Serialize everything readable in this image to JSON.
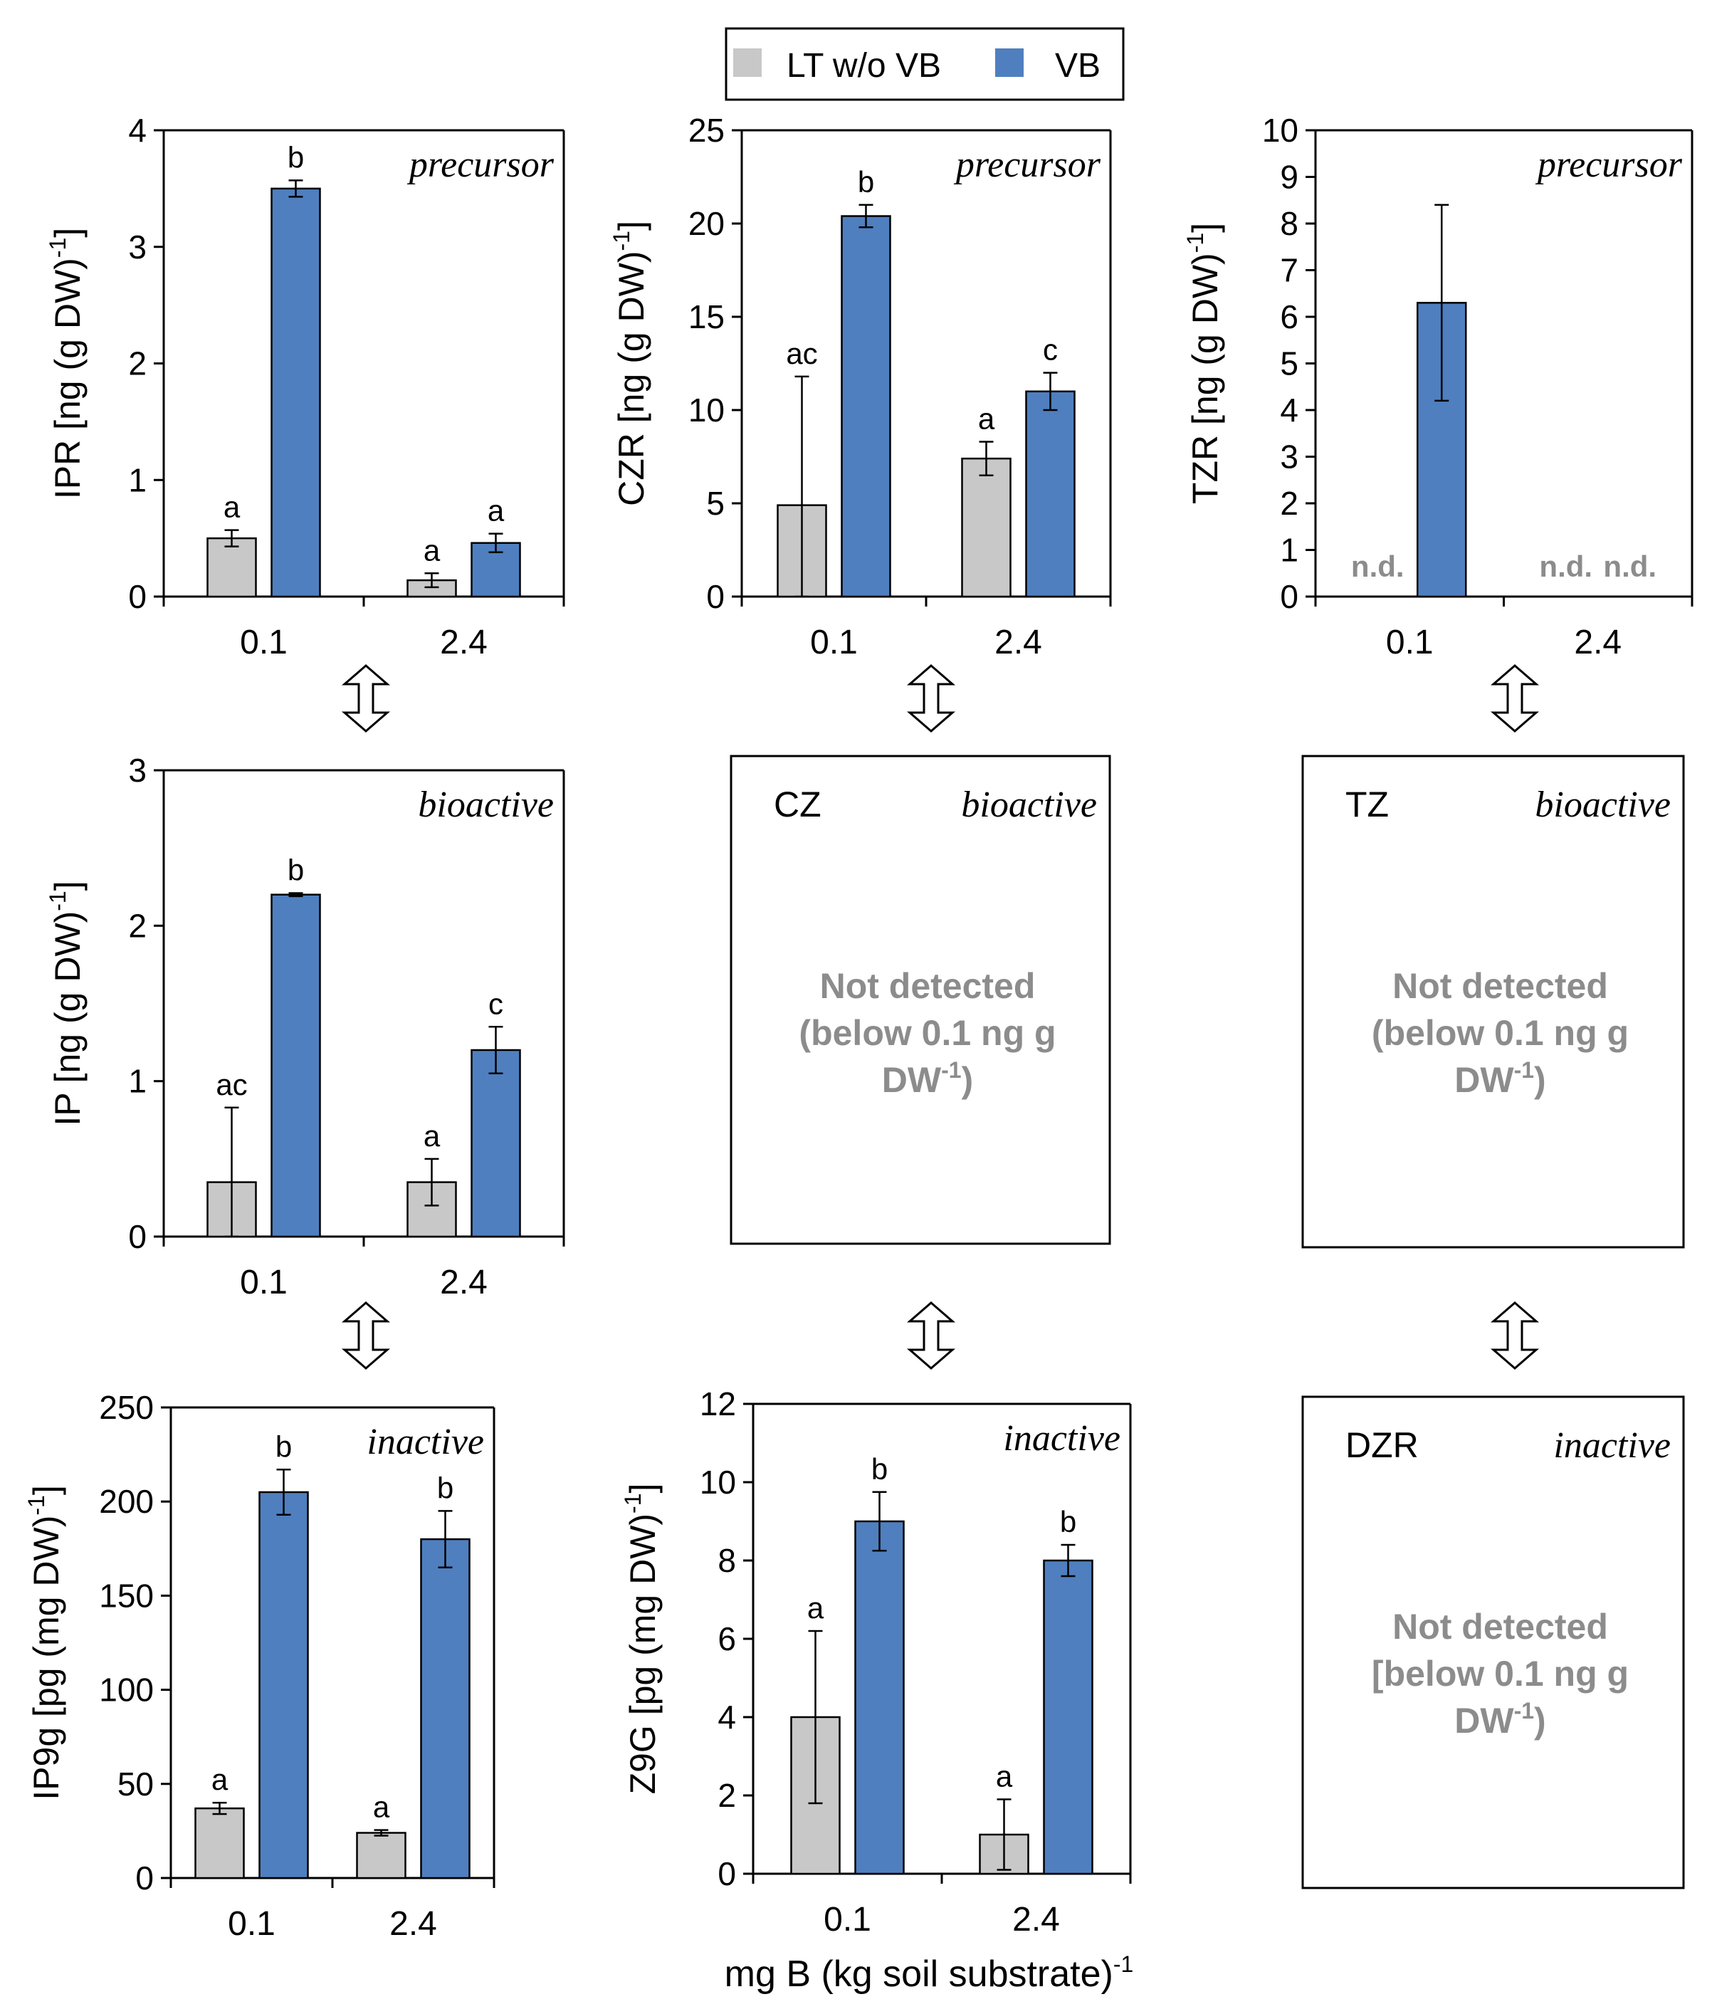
{
  "legend": {
    "items": [
      {
        "label": "LT w/o VB",
        "color": "#c8c8c8"
      },
      {
        "label": "VB",
        "color": "#4f7fbf"
      }
    ]
  },
  "x_axis_title": "mg B (kg soil substrate)",
  "x_axis_title_sup": "-1",
  "colors": {
    "gray": "#c8c8c8",
    "blue": "#4f7fbf",
    "nd_text": "#8c8c8c"
  },
  "chart_data": [
    {
      "id": "IPR",
      "type": "bar",
      "tag": "precursor",
      "ylabel": "IPR [ng (g DW)",
      "ylabel_sup": "-1",
      "ylabel_end": "]",
      "ylim": [
        0,
        4
      ],
      "yticks": [
        0,
        1,
        2,
        3,
        4
      ],
      "categories": [
        "0.1",
        "2.4"
      ],
      "series": [
        {
          "name": "LT w/o VB",
          "values": [
            0.5,
            0.14
          ],
          "errors": [
            0.07,
            0.06
          ],
          "letters": [
            "a",
            "a"
          ]
        },
        {
          "name": "VB",
          "values": [
            3.5,
            0.46
          ],
          "errors": [
            0.07,
            0.08
          ],
          "letters": [
            "b",
            "a"
          ]
        }
      ]
    },
    {
      "id": "CZR",
      "type": "bar",
      "tag": "precursor",
      "ylabel": "CZR [ng (g DW)",
      "ylabel_sup": "-1",
      "ylabel_end": "]",
      "ylim": [
        0,
        25
      ],
      "yticks": [
        0,
        5,
        10,
        15,
        20,
        25
      ],
      "categories": [
        "0.1",
        "2.4"
      ],
      "series": [
        {
          "name": "LT w/o VB",
          "values": [
            4.9,
            7.4
          ],
          "errors": [
            6.9,
            0.9
          ],
          "letters": [
            "ac",
            "a"
          ]
        },
        {
          "name": "VB",
          "values": [
            20.4,
            11.0
          ],
          "errors": [
            0.6,
            1.0
          ],
          "letters": [
            "b",
            "c"
          ]
        }
      ]
    },
    {
      "id": "TZR",
      "type": "bar",
      "tag": "precursor",
      "ylabel": "TZR [ng (g DW)",
      "ylabel_sup": "-1",
      "ylabel_end": "]",
      "ylim": [
        0,
        10
      ],
      "yticks": [
        0,
        1,
        2,
        3,
        4,
        5,
        6,
        7,
        8,
        9,
        10
      ],
      "categories": [
        "0.1",
        "2.4"
      ],
      "nd_label": "n.d.",
      "series": [
        {
          "name": "LT w/o VB",
          "values": [
            null,
            null
          ],
          "errors": [
            null,
            null
          ],
          "letters": [
            "",
            ""
          ]
        },
        {
          "name": "VB",
          "values": [
            6.3,
            null
          ],
          "errors": [
            2.1,
            null
          ],
          "letters": [
            "",
            ""
          ]
        }
      ]
    },
    {
      "id": "IP",
      "type": "bar",
      "tag": "bioactive",
      "ylabel": "IP [ng (g DW)",
      "ylabel_sup": "-1",
      "ylabel_end": "]",
      "ylim": [
        0,
        3
      ],
      "yticks": [
        0,
        1,
        2,
        3
      ],
      "categories": [
        "0.1",
        "2.4"
      ],
      "series": [
        {
          "name": "LT w/o VB",
          "values": [
            0.35,
            0.35
          ],
          "errors": [
            0.48,
            0.15
          ],
          "letters": [
            "ac",
            "a"
          ]
        },
        {
          "name": "VB",
          "values": [
            2.2,
            1.2
          ],
          "errors": [
            0.01,
            0.15
          ],
          "letters": [
            "b",
            "c"
          ]
        }
      ]
    },
    {
      "id": "IP9g",
      "type": "bar",
      "tag": "inactive",
      "ylabel": "IP9g [pg (mg DW)",
      "ylabel_sup": "-1",
      "ylabel_end": "]",
      "ylim": [
        0,
        250
      ],
      "yticks": [
        0,
        50,
        100,
        150,
        200,
        250
      ],
      "categories": [
        "0.1",
        "2.4"
      ],
      "series": [
        {
          "name": "LT w/o VB",
          "values": [
            37,
            24
          ],
          "errors": [
            3,
            1.5
          ],
          "letters": [
            "a",
            "a"
          ]
        },
        {
          "name": "VB",
          "values": [
            205,
            180
          ],
          "errors": [
            12,
            15
          ],
          "letters": [
            "b",
            "b"
          ]
        }
      ]
    },
    {
      "id": "Z9G",
      "type": "bar",
      "tag": "inactive",
      "ylabel": "Z9G [pg (mg DW)",
      "ylabel_sup": "-1",
      "ylabel_end": "]",
      "ylim": [
        0,
        12
      ],
      "yticks": [
        0,
        2,
        4,
        6,
        8,
        10,
        12
      ],
      "categories": [
        "0.1",
        "2.4"
      ],
      "series": [
        {
          "name": "LT w/o VB",
          "values": [
            4.0,
            1.0
          ],
          "errors": [
            2.2,
            0.9
          ],
          "letters": [
            "a",
            "a"
          ]
        },
        {
          "name": "VB",
          "values": [
            9.0,
            8.0
          ],
          "errors": [
            0.75,
            0.4
          ],
          "letters": [
            "b",
            "b"
          ]
        }
      ]
    }
  ],
  "nd_boxes": [
    {
      "id": "CZ",
      "name": "CZ",
      "tag": "bioactive",
      "lines": [
        "Not detected",
        "(below 0.1 ng g",
        "DW",
        ")"
      ],
      "sup": "-1"
    },
    {
      "id": "TZ",
      "name": "TZ",
      "tag": "bioactive",
      "lines": [
        "Not detected",
        "(below 0.1 ng g",
        "DW",
        ")"
      ],
      "sup": "-1"
    },
    {
      "id": "DZR",
      "name": "DZR",
      "tag": "inactive",
      "lines": [
        "Not detected",
        "[below 0.1 ng g",
        "DW",
        ")"
      ],
      "sup": "-1"
    }
  ]
}
